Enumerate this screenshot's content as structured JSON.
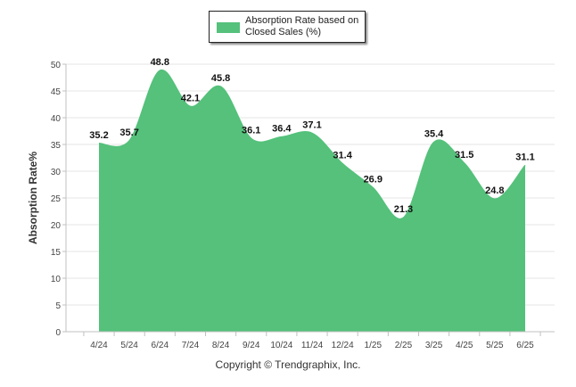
{
  "chart_data": {
    "type": "area",
    "ylabel": "Absorption Rate%",
    "xlabel": "",
    "categories": [
      "4/24",
      "5/24",
      "6/24",
      "7/24",
      "8/24",
      "9/24",
      "10/24",
      "11/24",
      "12/24",
      "1/25",
      "2/25",
      "3/25",
      "4/25",
      "5/25",
      "6/25"
    ],
    "series": [
      {
        "name": "Absorption Rate based on Closed Sales (%)",
        "values": [
          35.2,
          35.7,
          48.8,
          42.1,
          45.8,
          36.1,
          36.4,
          37.1,
          31.4,
          26.9,
          21.3,
          35.4,
          31.5,
          24.8,
          31.1
        ]
      }
    ],
    "ylim": [
      0,
      50
    ],
    "yticks": [
      0,
      5,
      10,
      15,
      20,
      25,
      30,
      35,
      40,
      45,
      50
    ],
    "grid": true,
    "legend_position": "top-center",
    "colors": {
      "area": "#55c17b",
      "grid": "#e6e6e6",
      "axis": "#c0c0c0"
    }
  },
  "legend": {
    "label": "Absorption Rate based on Closed Sales (%)"
  },
  "footer": {
    "copyright": "Copyright © Trendgraphix, Inc."
  }
}
